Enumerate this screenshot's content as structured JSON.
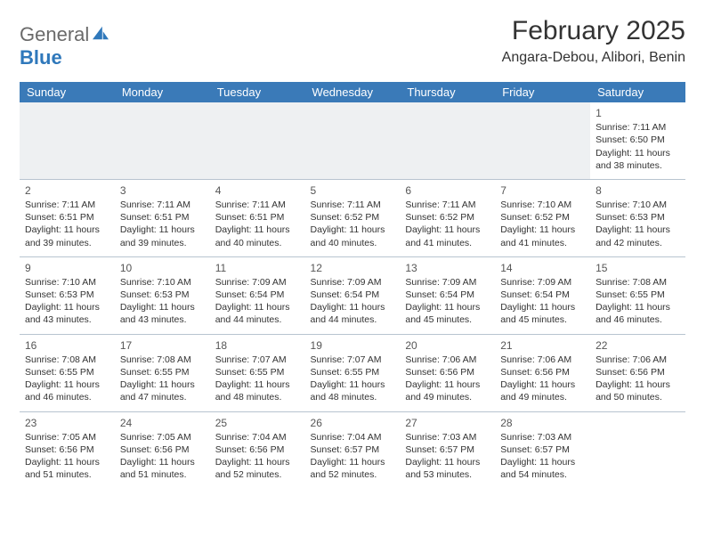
{
  "logo": {
    "top": "General",
    "bottom": "Blue"
  },
  "title": "February 2025",
  "location": "Angara-Debou, Alibori, Benin",
  "colors": {
    "header_bg": "#3a7ab8",
    "header_text": "#ffffff",
    "grid_line": "#b8c4d0",
    "empty_bg": "#eef0f2",
    "logo_gray": "#6a6a6a",
    "logo_blue": "#2f78bb"
  },
  "weekdays": [
    "Sunday",
    "Monday",
    "Tuesday",
    "Wednesday",
    "Thursday",
    "Friday",
    "Saturday"
  ],
  "weeks": [
    [
      null,
      null,
      null,
      null,
      null,
      null,
      {
        "n": "1",
        "sr": "7:11 AM",
        "ss": "6:50 PM",
        "dl": "11 hours and 38 minutes."
      }
    ],
    [
      {
        "n": "2",
        "sr": "7:11 AM",
        "ss": "6:51 PM",
        "dl": "11 hours and 39 minutes."
      },
      {
        "n": "3",
        "sr": "7:11 AM",
        "ss": "6:51 PM",
        "dl": "11 hours and 39 minutes."
      },
      {
        "n": "4",
        "sr": "7:11 AM",
        "ss": "6:51 PM",
        "dl": "11 hours and 40 minutes."
      },
      {
        "n": "5",
        "sr": "7:11 AM",
        "ss": "6:52 PM",
        "dl": "11 hours and 40 minutes."
      },
      {
        "n": "6",
        "sr": "7:11 AM",
        "ss": "6:52 PM",
        "dl": "11 hours and 41 minutes."
      },
      {
        "n": "7",
        "sr": "7:10 AM",
        "ss": "6:52 PM",
        "dl": "11 hours and 41 minutes."
      },
      {
        "n": "8",
        "sr": "7:10 AM",
        "ss": "6:53 PM",
        "dl": "11 hours and 42 minutes."
      }
    ],
    [
      {
        "n": "9",
        "sr": "7:10 AM",
        "ss": "6:53 PM",
        "dl": "11 hours and 43 minutes."
      },
      {
        "n": "10",
        "sr": "7:10 AM",
        "ss": "6:53 PM",
        "dl": "11 hours and 43 minutes."
      },
      {
        "n": "11",
        "sr": "7:09 AM",
        "ss": "6:54 PM",
        "dl": "11 hours and 44 minutes."
      },
      {
        "n": "12",
        "sr": "7:09 AM",
        "ss": "6:54 PM",
        "dl": "11 hours and 44 minutes."
      },
      {
        "n": "13",
        "sr": "7:09 AM",
        "ss": "6:54 PM",
        "dl": "11 hours and 45 minutes."
      },
      {
        "n": "14",
        "sr": "7:09 AM",
        "ss": "6:54 PM",
        "dl": "11 hours and 45 minutes."
      },
      {
        "n": "15",
        "sr": "7:08 AM",
        "ss": "6:55 PM",
        "dl": "11 hours and 46 minutes."
      }
    ],
    [
      {
        "n": "16",
        "sr": "7:08 AM",
        "ss": "6:55 PM",
        "dl": "11 hours and 46 minutes."
      },
      {
        "n": "17",
        "sr": "7:08 AM",
        "ss": "6:55 PM",
        "dl": "11 hours and 47 minutes."
      },
      {
        "n": "18",
        "sr": "7:07 AM",
        "ss": "6:55 PM",
        "dl": "11 hours and 48 minutes."
      },
      {
        "n": "19",
        "sr": "7:07 AM",
        "ss": "6:55 PM",
        "dl": "11 hours and 48 minutes."
      },
      {
        "n": "20",
        "sr": "7:06 AM",
        "ss": "6:56 PM",
        "dl": "11 hours and 49 minutes."
      },
      {
        "n": "21",
        "sr": "7:06 AM",
        "ss": "6:56 PM",
        "dl": "11 hours and 49 minutes."
      },
      {
        "n": "22",
        "sr": "7:06 AM",
        "ss": "6:56 PM",
        "dl": "11 hours and 50 minutes."
      }
    ],
    [
      {
        "n": "23",
        "sr": "7:05 AM",
        "ss": "6:56 PM",
        "dl": "11 hours and 51 minutes."
      },
      {
        "n": "24",
        "sr": "7:05 AM",
        "ss": "6:56 PM",
        "dl": "11 hours and 51 minutes."
      },
      {
        "n": "25",
        "sr": "7:04 AM",
        "ss": "6:56 PM",
        "dl": "11 hours and 52 minutes."
      },
      {
        "n": "26",
        "sr": "7:04 AM",
        "ss": "6:57 PM",
        "dl": "11 hours and 52 minutes."
      },
      {
        "n": "27",
        "sr": "7:03 AM",
        "ss": "6:57 PM",
        "dl": "11 hours and 53 minutes."
      },
      {
        "n": "28",
        "sr": "7:03 AM",
        "ss": "6:57 PM",
        "dl": "11 hours and 54 minutes."
      },
      null
    ]
  ],
  "labels": {
    "sunrise": "Sunrise:",
    "sunset": "Sunset:",
    "daylight": "Daylight:"
  }
}
